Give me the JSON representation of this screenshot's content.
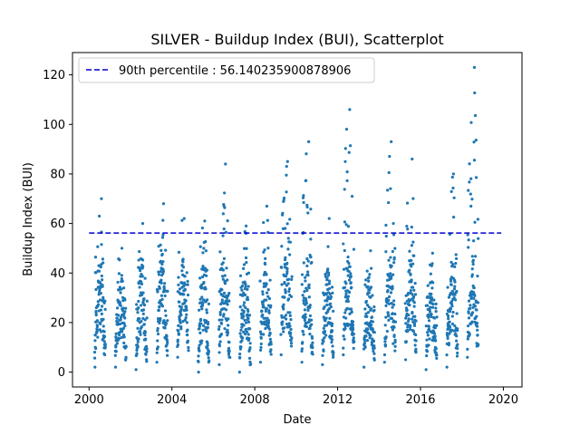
{
  "chart_data": {
    "type": "scatter",
    "title": "SILVER - Buildup Index (BUI), Scatterplot",
    "xlabel": "Date",
    "ylabel": "Buildup Index (BUI)",
    "xlim": [
      1999.2,
      2020.9
    ],
    "ylim": [
      -6,
      129
    ],
    "x_ticks": [
      2000,
      2004,
      2008,
      2012,
      2016,
      2020
    ],
    "y_ticks": [
      0,
      20,
      40,
      60,
      80,
      100,
      120
    ],
    "grid": false,
    "legend_position": "top-left",
    "point_color": "#1f77b4",
    "reference_line": {
      "label": "90th percentile : 56.140235900878906",
      "value": 56.140235900878906,
      "x_range": [
        2000.0,
        2019.9
      ],
      "color": "#0000cc",
      "style": "dashed"
    },
    "seasons": [
      {
        "year": 2000,
        "peak": 70,
        "min": 2
      },
      {
        "year": 2001,
        "peak": 50,
        "min": 2
      },
      {
        "year": 2002,
        "peak": 60,
        "min": 1
      },
      {
        "year": 2003,
        "peak": 68,
        "min": 4
      },
      {
        "year": 2004,
        "peak": 62,
        "min": 6
      },
      {
        "year": 2005,
        "peak": 61,
        "min": 0
      },
      {
        "year": 2006,
        "peak": 84,
        "min": 3
      },
      {
        "year": 2007,
        "peak": 59,
        "min": 0
      },
      {
        "year": 2008,
        "peak": 67,
        "min": 4
      },
      {
        "year": 2009,
        "peak": 85,
        "min": 7
      },
      {
        "year": 2010,
        "peak": 93,
        "min": 4
      },
      {
        "year": 2011,
        "peak": 62,
        "min": 3
      },
      {
        "year": 2012,
        "peak": 106,
        "min": 7
      },
      {
        "year": 2013,
        "peak": 49,
        "min": 2
      },
      {
        "year": 2014,
        "peak": 93,
        "min": 4
      },
      {
        "year": 2015,
        "peak": 86,
        "min": 5
      },
      {
        "year": 2016,
        "peak": 48,
        "min": 1
      },
      {
        "year": 2017,
        "peak": 80,
        "min": 2
      },
      {
        "year": 2018,
        "peak": 123,
        "min": 6
      }
    ]
  }
}
